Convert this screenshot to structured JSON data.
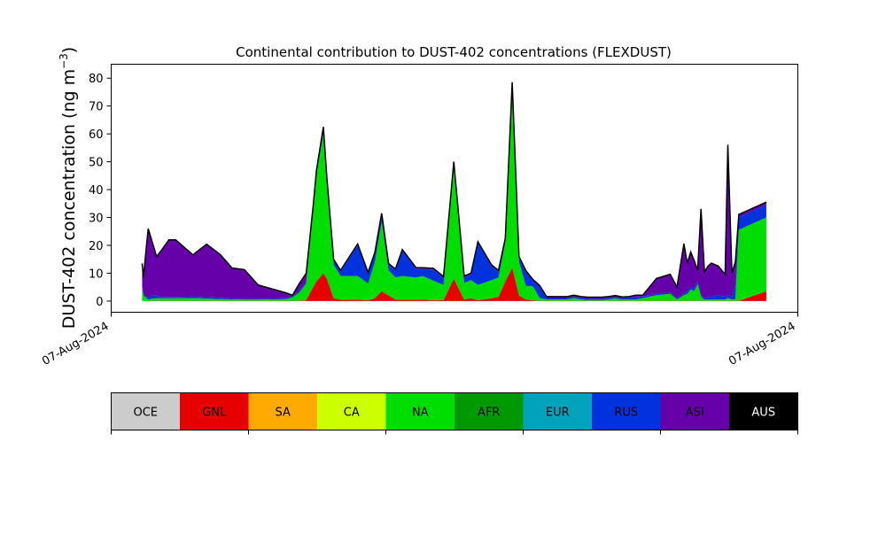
{
  "chart_data": {
    "type": "area",
    "stacked": true,
    "title": "Continental contribution to DUST-402 concentrations (FLEXDUST)",
    "ylabel_main": "DUST-402 concentration (ng m",
    "ylabel_exp": "−3",
    "ylabel_close": ")",
    "ylim": [
      -4,
      85
    ],
    "yticks": [
      0,
      10,
      20,
      30,
      40,
      50,
      60,
      70,
      80
    ],
    "xlim": [
      0,
      100
    ],
    "xtick_labels": [
      "07-Aug-2024",
      "07-Aug-2024"
    ],
    "grid": false,
    "x": [
      4.5,
      4.7,
      5.2,
      5.4,
      5.9,
      6.6,
      7.4,
      8.4,
      9.4,
      11.9,
      13.9,
      15.9,
      17.6,
      19.4,
      21.4,
      25.4,
      26.4,
      27.4,
      28.4,
      29.4,
      29.9,
      30.9,
      31.4,
      32.4,
      33.4,
      35.9,
      37.4,
      38.4,
      39.4,
      40.4,
      41.4,
      42.4,
      44.4,
      45.4,
      46.9,
      48.4,
      49.9,
      51.4,
      52.4,
      53.4,
      55.4,
      56.4,
      57.4,
      58.4,
      59.4,
      60.4,
      61.4,
      62.4,
      63.4,
      64.4,
      65.4,
      66.4,
      67.4,
      68.4,
      69.4,
      70.4,
      71.4,
      72.4,
      73.4,
      74.4,
      75.4,
      76.4,
      77.4,
      79.4,
      81.4,
      82.4,
      83.4,
      83.9,
      84.4,
      84.9,
      85.4,
      85.9,
      86.4,
      86.9,
      87.4,
      88.4,
      89.4,
      89.8,
      90.4,
      90.9,
      91.4,
      95.4
    ],
    "series": [
      {
        "name": "GNL",
        "color": "#e60000",
        "values": [
          0,
          0,
          0,
          0,
          0.1,
          0.1,
          0.1,
          0.1,
          0.1,
          0.1,
          0.1,
          0.1,
          0.1,
          0.1,
          0.1,
          0.1,
          0.1,
          0.1,
          0.3,
          5,
          7,
          10,
          8,
          1,
          0.5,
          0.5,
          0.3,
          1,
          3.5,
          2,
          0.5,
          0.5,
          0.5,
          0.5,
          0.3,
          0.3,
          8,
          0.5,
          1,
          0.3,
          1,
          1.5,
          7,
          12,
          2,
          0.5,
          0.3,
          0.1,
          0.1,
          0.1,
          0.1,
          0.1,
          0.1,
          0.1,
          0.1,
          0.1,
          0.1,
          0.1,
          0.1,
          0.1,
          0.1,
          0.1,
          0.1,
          0.1,
          0.1,
          0.1,
          0.1,
          0.1,
          0.1,
          0.1,
          0.1,
          0.1,
          0.1,
          0.1,
          0.1,
          0.1,
          0.1,
          0.1,
          0.1,
          0.1,
          0.1,
          3.5
        ]
      },
      {
        "name": "NA",
        "color": "#00dd00",
        "values": [
          5,
          2,
          1,
          0.5,
          0.8,
          0.9,
          0.9,
          0.9,
          0.9,
          1,
          0.8,
          0.6,
          0.5,
          0.4,
          0.4,
          0.6,
          1.2,
          3,
          6,
          27,
          38,
          50,
          34,
          12,
          8.5,
          8.5,
          6,
          13,
          25,
          9,
          8,
          8.5,
          8,
          8.5,
          7,
          5.5,
          40,
          6,
          6.5,
          5.5,
          6.5,
          7,
          14,
          64,
          12,
          4.9,
          5,
          1,
          0.5,
          0.5,
          0.5,
          0.5,
          1,
          0.5,
          0.3,
          0.3,
          0.3,
          0.5,
          0.9,
          0.4,
          0.5,
          0.5,
          1,
          2,
          2.5,
          0.5,
          2,
          2.5,
          4,
          3.5,
          6,
          1.5,
          0.4,
          0.4,
          0.5,
          0.5,
          0.5,
          1,
          0.5,
          0.5,
          25.5,
          26.5
        ]
      },
      {
        "name": "RUS",
        "color": "#0033dd",
        "values": [
          0.5,
          0.5,
          0.5,
          0.5,
          1,
          1,
          0.5,
          0.5,
          0.5,
          0.5,
          0.5,
          0.5,
          0.3,
          0.3,
          0.3,
          0.3,
          0.3,
          0.7,
          0.7,
          1.5,
          1.5,
          2,
          2,
          1.5,
          1.5,
          11,
          3.5,
          3,
          2.5,
          2,
          2.5,
          9,
          3,
          2.5,
          4,
          2.5,
          1.5,
          2,
          2,
          15,
          5,
          2,
          1,
          2,
          1.5,
          5,
          2,
          4,
          0.5,
          0.5,
          0.5,
          0.5,
          0.5,
          0.5,
          0.5,
          0.5,
          0.5,
          0.5,
          0.5,
          0.5,
          0.5,
          1,
          0.5,
          0.5,
          0.5,
          0.5,
          0.5,
          1,
          0.5,
          1,
          1,
          0.5,
          0.5,
          1,
          1,
          1.5,
          1,
          1,
          1,
          5,
          4.5,
          4.5
        ]
      },
      {
        "name": "ASI",
        "color": "#6600aa",
        "values": [
          8,
          6,
          20,
          25,
          20,
          14,
          17,
          20.5,
          20.5,
          15,
          19,
          15.5,
          11,
          10.5,
          5,
          2,
          0.5,
          2.5,
          3,
          0.5,
          0.5,
          0.5,
          0.5,
          0.5,
          0.5,
          0.5,
          0.5,
          0.5,
          0.5,
          0.5,
          0.5,
          0.5,
          0.5,
          0.5,
          0.5,
          0.5,
          0.5,
          0.5,
          0.5,
          0.5,
          0.5,
          0.5,
          0.5,
          0.5,
          0.5,
          0.5,
          0.5,
          0.5,
          0.5,
          0.5,
          0.5,
          0.5,
          0.5,
          0.5,
          0.5,
          0.5,
          0.5,
          0.5,
          0.5,
          0.5,
          0.5,
          0.5,
          0.5,
          5.5,
          6.5,
          4,
          18,
          10,
          13,
          10,
          4,
          31,
          9.5,
          11,
          12,
          10.5,
          8,
          54,
          8.5,
          8.5,
          1,
          1
        ]
      },
      {
        "name": "AUS",
        "color": "#000000",
        "values": [
          0,
          0,
          0,
          0,
          0,
          0,
          0,
          0,
          0,
          0,
          0,
          0,
          0,
          0,
          0,
          0,
          0,
          0,
          0,
          0,
          0,
          0,
          0,
          0,
          0,
          0,
          0,
          0,
          0,
          0,
          0,
          0,
          0,
          0,
          0,
          0,
          0,
          0,
          0,
          0,
          0,
          0,
          0,
          0,
          0,
          0,
          0,
          0,
          0,
          0,
          0,
          0,
          0,
          0,
          0,
          0,
          0,
          0,
          0,
          0,
          0,
          0,
          0,
          0,
          0,
          0,
          0,
          0,
          0,
          0,
          0,
          0,
          0,
          0,
          0,
          0,
          0,
          0,
          0,
          0,
          0,
          0
        ]
      }
    ],
    "legend": [
      {
        "name": "OCE",
        "color": "#cccccc"
      },
      {
        "name": "GNL",
        "color": "#e60000"
      },
      {
        "name": "SA",
        "color": "#ffaa00"
      },
      {
        "name": "CA",
        "color": "#ccff00"
      },
      {
        "name": "NA",
        "color": "#00dd00"
      },
      {
        "name": "AFR",
        "color": "#009900"
      },
      {
        "name": "EUR",
        "color": "#00a3bb"
      },
      {
        "name": "RUS",
        "color": "#0033dd"
      },
      {
        "name": "ASI",
        "color": "#6600aa"
      },
      {
        "name": "AUS",
        "color": "#000000"
      }
    ],
    "legend_position": "below"
  }
}
